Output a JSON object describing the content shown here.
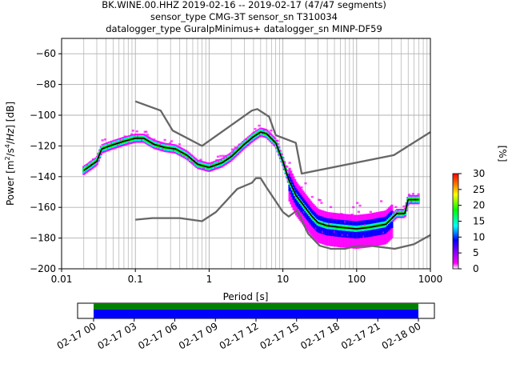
{
  "chart_data": {
    "type": "probabilistic_power_spectral_density",
    "title_lines": [
      "BK.WINE.00.HHZ   2019-02-16 -- 2019-02-17  (47/47 segments)",
      "sensor_type CMG-3T sensor_sn T310034",
      "datalogger_type GuralpMinimus+ datalogger_sn MINP-DF59"
    ],
    "xlabel": "Period [s]",
    "ylabel": "Power [m²/s⁴/Hz] [dB]",
    "x_scale": "log",
    "xlim": [
      0.01,
      1000
    ],
    "ylim": [
      -200,
      -50
    ],
    "x_ticks": [
      0.01,
      0.1,
      1,
      10,
      100,
      1000
    ],
    "x_tick_labels": [
      "0.01",
      "0.1",
      "1",
      "10",
      "100",
      "1000"
    ],
    "y_ticks": [
      -200,
      -180,
      -160,
      -140,
      -120,
      -100,
      -80,
      -60
    ],
    "y_tick_labels": [
      "−200",
      "−180",
      "−160",
      "−140",
      "−120",
      "−100",
      "−80",
      "−60"
    ],
    "grid": true,
    "colorbar": {
      "label": "[%]",
      "range": [
        0,
        30
      ],
      "ticks": [
        0,
        5,
        10,
        15,
        20,
        25,
        30
      ],
      "tick_labels": [
        "0",
        "5",
        "10",
        "15",
        "20",
        "25",
        "30"
      ],
      "colormap_stops": [
        "#ffffff",
        "#ff00ff",
        "#0000ff",
        "#00ffff",
        "#00ff00",
        "#ffff00",
        "#ff8000",
        "#ff0000"
      ]
    },
    "series": [
      {
        "role": "noise-model-high",
        "color": "#666666",
        "points": [
          [
            0.1,
            -91
          ],
          [
            0.22,
            -97
          ],
          [
            0.32,
            -110
          ],
          [
            0.8,
            -120
          ],
          [
            3.8,
            -97
          ],
          [
            4.5,
            -96
          ],
          [
            6.5,
            -101
          ],
          [
            8,
            -113
          ],
          [
            15,
            -118
          ],
          [
            18,
            -138
          ],
          [
            320,
            -126
          ],
          [
            1000,
            -111
          ]
        ]
      },
      {
        "role": "noise-model-low",
        "color": "#666666",
        "points": [
          [
            0.1,
            -168
          ],
          [
            0.17,
            -167
          ],
          [
            0.4,
            -167
          ],
          [
            0.8,
            -169
          ],
          [
            1.24,
            -163
          ],
          [
            2.4,
            -148
          ],
          [
            3.8,
            -144
          ],
          [
            4.3,
            -141
          ],
          [
            5,
            -141
          ],
          [
            6,
            -147
          ],
          [
            10,
            -163
          ],
          [
            12,
            -166
          ],
          [
            15.6,
            -162
          ],
          [
            21.9,
            -177
          ],
          [
            31.6,
            -185
          ],
          [
            45,
            -187
          ],
          [
            70,
            -187
          ],
          [
            101,
            -185
          ],
          [
            154,
            -185
          ],
          [
            328,
            -187
          ],
          [
            600,
            -184
          ],
          [
            1000,
            -178
          ]
        ]
      },
      {
        "role": "mode",
        "color": "#000000",
        "points": [
          [
            0.02,
            -136
          ],
          [
            0.03,
            -130
          ],
          [
            0.035,
            -122
          ],
          [
            0.045,
            -120
          ],
          [
            0.07,
            -117
          ],
          [
            0.1,
            -115
          ],
          [
            0.13,
            -115
          ],
          [
            0.18,
            -119
          ],
          [
            0.25,
            -121
          ],
          [
            0.35,
            -122
          ],
          [
            0.5,
            -126
          ],
          [
            0.7,
            -132
          ],
          [
            1,
            -134
          ],
          [
            1.5,
            -131
          ],
          [
            2,
            -127
          ],
          [
            3,
            -119
          ],
          [
            4,
            -114
          ],
          [
            5,
            -111
          ],
          [
            6,
            -112
          ],
          [
            8,
            -118
          ],
          [
            10,
            -130
          ],
          [
            12,
            -142
          ],
          [
            15,
            -152
          ],
          [
            20,
            -160
          ],
          [
            25,
            -166
          ],
          [
            30,
            -170
          ],
          [
            40,
            -172
          ],
          [
            60,
            -173
          ],
          [
            100,
            -174
          ],
          [
            150,
            -173
          ],
          [
            250,
            -171
          ],
          [
            350,
            -164
          ],
          [
            450,
            -164
          ],
          [
            500,
            -155
          ],
          [
            700,
            -155
          ]
        ]
      }
    ],
    "time_coverage": {
      "tick_labels": [
        "02-17 00",
        "02-17 03",
        "02-17 06",
        "02-17 09",
        "02-17 12",
        "02-17 15",
        "02-17 18",
        "02-17 21",
        "02-18 00"
      ],
      "range": [
        "02-17 00",
        "02-18 00"
      ],
      "data_color": "#008000",
      "processed_color": "#0000ff"
    }
  }
}
